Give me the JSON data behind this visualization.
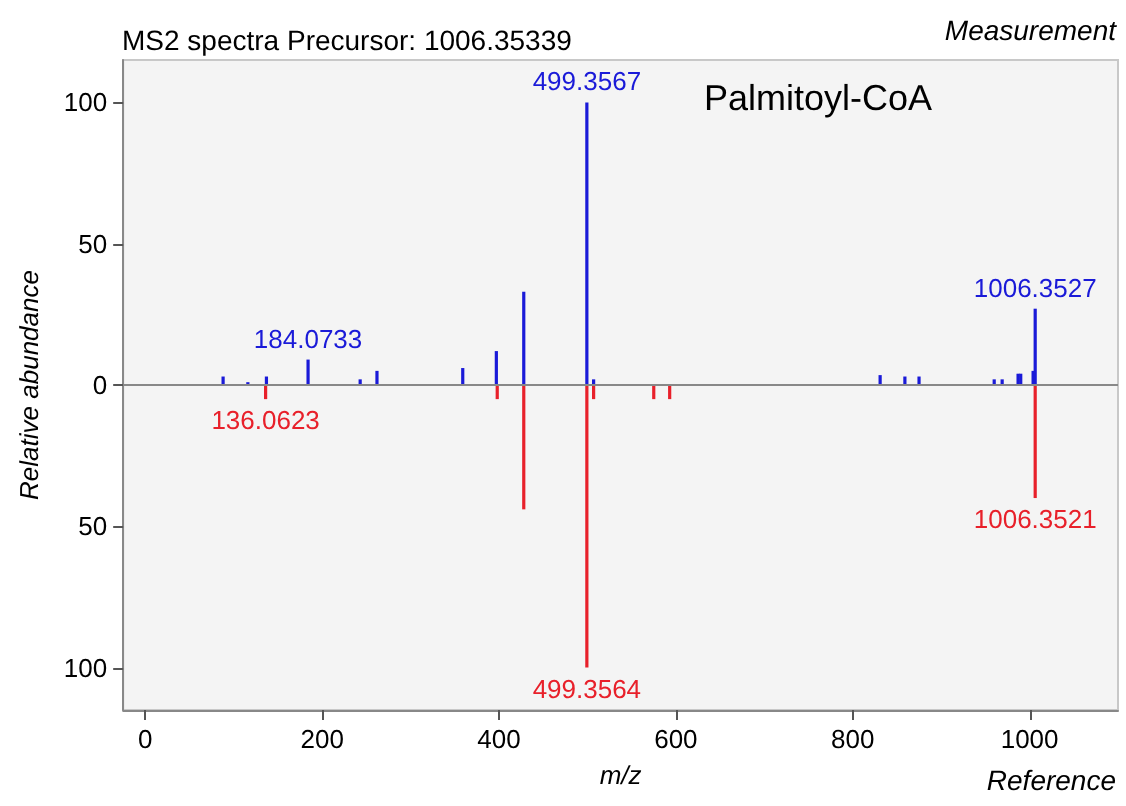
{
  "chart_data": {
    "type": "bar",
    "title": "MS2 spectra Precursor: 1006.35339",
    "xlabel": "m/z",
    "ylabel": "Relative abundance",
    "annotations": [
      "Measurement",
      "Reference",
      "Palmitoyl-CoA",
      {
        "text": "184.0733",
        "x": 184.0733,
        "y": 9
      },
      {
        "text": "499.3567",
        "x": 499.3567,
        "y": 100
      },
      {
        "text": "1006.3527",
        "x": 1006.3527,
        "y": 27
      },
      {
        "text": "136.0623",
        "x": 136.0623,
        "y": -5
      },
      {
        "text": "499.3564",
        "x": 499.3564,
        "y": -100
      },
      {
        "text": "1006.3521",
        "x": 1006.3521,
        "y": -40
      }
    ],
    "xlim": [
      -25,
      1100
    ],
    "xticks": [
      0,
      200,
      400,
      600,
      800,
      1000
    ],
    "ylim": [
      -115,
      115
    ],
    "yticks": [
      {
        "value": -100,
        "label": "100"
      },
      {
        "value": -50,
        "label": "50"
      },
      0,
      50,
      100
    ],
    "ref_lines": [
      {
        "axis": "y",
        "value": 0,
        "color": "#888888"
      }
    ],
    "series": [
      {
        "color": "#1a1ad8",
        "x": [
          88,
          116,
          137,
          184.0733,
          243,
          262,
          359,
          397,
          428,
          499.3567,
          507,
          831,
          859,
          875,
          960,
          969,
          987,
          990,
          1004,
          1006.3527
        ],
        "values": [
          3,
          1,
          3,
          9,
          2,
          5,
          6,
          12,
          33,
          100,
          2,
          3.5,
          3,
          3,
          2,
          2,
          4,
          4,
          5,
          27
        ]
      },
      {
        "color": "#e8202a",
        "x": [
          136.0623,
          398,
          428,
          499.3564,
          507,
          575,
          593,
          1006.3521
        ],
        "values": [
          -5,
          -5,
          -44,
          -100,
          -5,
          -5,
          -5,
          -40
        ]
      }
    ]
  }
}
